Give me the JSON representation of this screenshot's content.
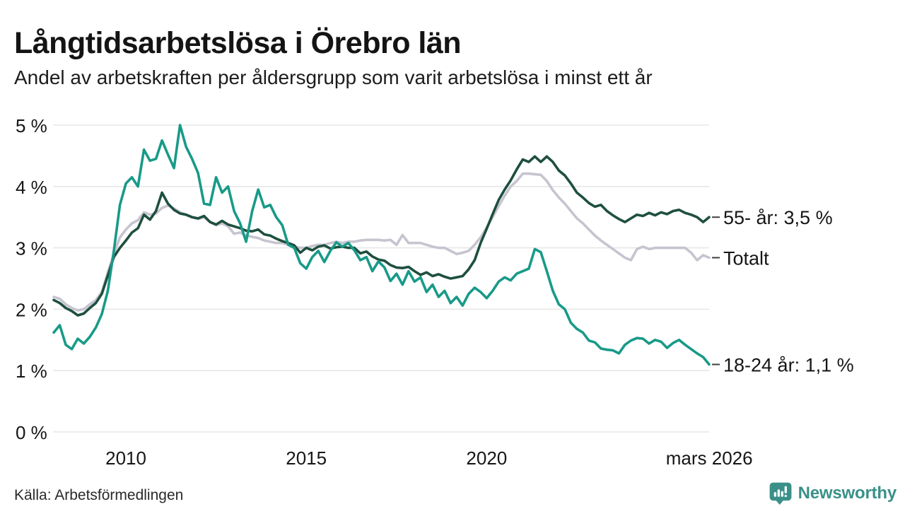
{
  "header": {
    "title": "Långtidsarbetslösa i Örebro län",
    "subtitle": "Andel av arbetskraften per åldersgrupp som varit arbetslösa i minst ett år"
  },
  "footer": {
    "source": "Källa: Arbetsförmedlingen",
    "brand_name": "Newsworthy",
    "brand_color": "#3a9089"
  },
  "chart_data": {
    "type": "line",
    "title": "Långtidsarbetslösa i Örebro län",
    "xlabel": "",
    "ylabel": "",
    "grid": "horizontal",
    "legend_position": "right-end-labels",
    "ylim": [
      0,
      5
    ],
    "x_start_year": 2008.0,
    "x_step_years": 0.166667,
    "x_end": "mars 2026",
    "yticks": [
      {
        "value": 0,
        "label": "0 %"
      },
      {
        "value": 1,
        "label": "1 %"
      },
      {
        "value": 2,
        "label": "2 %"
      },
      {
        "value": 3,
        "label": "3 %"
      },
      {
        "value": 4,
        "label": "4 %"
      },
      {
        "value": 5,
        "label": "5 %"
      }
    ],
    "xticks": [
      {
        "year": 2010,
        "label": "2010"
      },
      {
        "year": 2015,
        "label": "2015"
      },
      {
        "year": 2020,
        "label": "2020"
      },
      {
        "year": 2026.17,
        "label": "mars 2026"
      }
    ],
    "gridline_color": "#e7e7e7",
    "label_color": "#161616",
    "connector_color": "#404040",
    "series": [
      {
        "id": "totalt",
        "end_label": "Totalt",
        "color": "#c7c4d0",
        "values": [
          2.2,
          2.17,
          2.08,
          2.02,
          1.98,
          2.0,
          2.08,
          2.15,
          2.28,
          2.6,
          2.9,
          3.17,
          3.3,
          3.4,
          3.45,
          3.58,
          3.54,
          3.56,
          3.65,
          3.69,
          3.64,
          3.58,
          3.54,
          3.5,
          3.47,
          3.5,
          3.42,
          3.37,
          3.4,
          3.35,
          3.23,
          3.25,
          3.2,
          3.18,
          3.16,
          3.12,
          3.1,
          3.08,
          3.08,
          3.05,
          3.02,
          3.0,
          3.0,
          3.03,
          3.05,
          3.05,
          3.08,
          3.1,
          3.08,
          3.1,
          3.1,
          3.12,
          3.13,
          3.13,
          3.13,
          3.12,
          3.13,
          3.05,
          3.21,
          3.08,
          3.08,
          3.08,
          3.05,
          3.02,
          3.0,
          3.0,
          2.95,
          2.9,
          2.92,
          2.95,
          3.05,
          3.17,
          3.33,
          3.5,
          3.68,
          3.85,
          4.0,
          4.09,
          4.21,
          4.21,
          4.2,
          4.19,
          4.09,
          3.94,
          3.82,
          3.72,
          3.6,
          3.48,
          3.4,
          3.3,
          3.2,
          3.12,
          3.05,
          2.98,
          2.91,
          2.84,
          2.8,
          2.98,
          3.02,
          2.98,
          3.0,
          3.0,
          3.0,
          3.0,
          3.0,
          3.0,
          2.92,
          2.8,
          2.88,
          2.84
        ]
      },
      {
        "id": "55-plus",
        "end_label": "55- år: 3,5 %",
        "color": "#1e4f3f",
        "values": [
          2.15,
          2.1,
          2.02,
          1.97,
          1.9,
          1.93,
          2.02,
          2.1,
          2.25,
          2.55,
          2.85,
          3.0,
          3.12,
          3.25,
          3.32,
          3.54,
          3.46,
          3.6,
          3.9,
          3.72,
          3.62,
          3.56,
          3.54,
          3.5,
          3.48,
          3.52,
          3.42,
          3.38,
          3.44,
          3.38,
          3.35,
          3.32,
          3.28,
          3.27,
          3.3,
          3.22,
          3.2,
          3.15,
          3.11,
          3.08,
          3.04,
          2.92,
          3.0,
          2.96,
          3.02,
          3.04,
          2.99,
          3.01,
          3.02,
          3.0,
          3.0,
          2.91,
          2.94,
          2.86,
          2.81,
          2.79,
          2.72,
          2.68,
          2.67,
          2.69,
          2.62,
          2.56,
          2.6,
          2.54,
          2.57,
          2.53,
          2.5,
          2.52,
          2.54,
          2.65,
          2.8,
          3.08,
          3.31,
          3.55,
          3.78,
          3.95,
          4.1,
          4.28,
          4.44,
          4.4,
          4.49,
          4.4,
          4.49,
          4.4,
          4.26,
          4.18,
          4.05,
          3.9,
          3.82,
          3.73,
          3.67,
          3.7,
          3.6,
          3.53,
          3.47,
          3.42,
          3.48,
          3.54,
          3.52,
          3.57,
          3.53,
          3.58,
          3.55,
          3.6,
          3.62,
          3.57,
          3.54,
          3.5,
          3.42,
          3.5
        ]
      },
      {
        "id": "18-24",
        "end_label": "18-24 år: 1,1 %",
        "color": "#189a88",
        "values": [
          1.62,
          1.74,
          1.42,
          1.35,
          1.52,
          1.44,
          1.55,
          1.7,
          1.92,
          2.3,
          2.95,
          3.7,
          4.05,
          4.15,
          4.0,
          4.6,
          4.42,
          4.45,
          4.75,
          4.52,
          4.3,
          5.0,
          4.65,
          4.45,
          4.22,
          3.72,
          3.7,
          4.15,
          3.9,
          4.0,
          3.6,
          3.4,
          3.1,
          3.6,
          3.95,
          3.66,
          3.7,
          3.5,
          3.37,
          3.05,
          3.0,
          2.75,
          2.66,
          2.85,
          2.95,
          2.77,
          2.95,
          3.09,
          3.02,
          3.08,
          2.96,
          2.8,
          2.85,
          2.62,
          2.78,
          2.68,
          2.46,
          2.58,
          2.4,
          2.62,
          2.45,
          2.52,
          2.28,
          2.4,
          2.2,
          2.3,
          2.1,
          2.2,
          2.06,
          2.25,
          2.35,
          2.28,
          2.18,
          2.3,
          2.45,
          2.52,
          2.47,
          2.58,
          2.62,
          2.66,
          2.98,
          2.93,
          2.62,
          2.3,
          2.08,
          2.0,
          1.78,
          1.68,
          1.62,
          1.49,
          1.46,
          1.36,
          1.34,
          1.33,
          1.28,
          1.42,
          1.49,
          1.53,
          1.52,
          1.44,
          1.5,
          1.47,
          1.37,
          1.45,
          1.5,
          1.42,
          1.35,
          1.28,
          1.22,
          1.1
        ]
      }
    ]
  }
}
